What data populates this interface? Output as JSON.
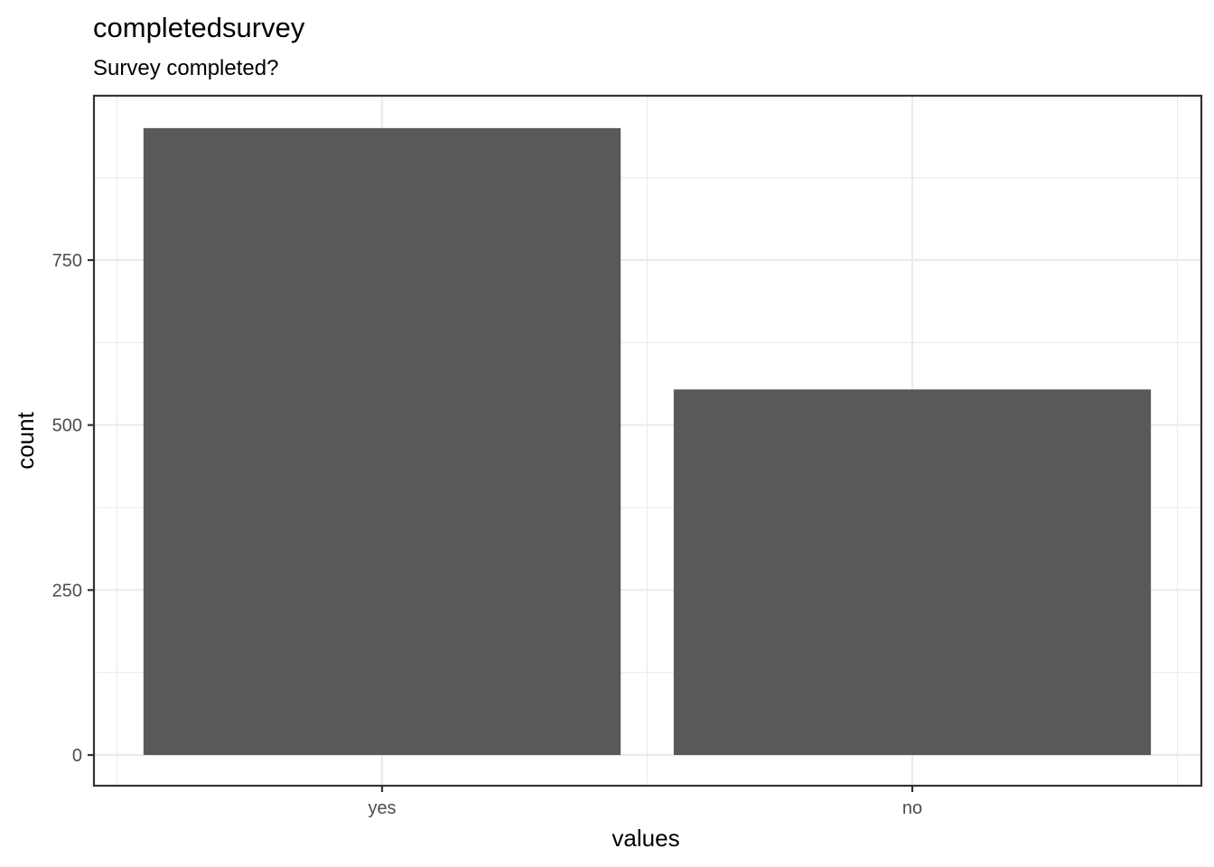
{
  "chart_data": {
    "type": "bar",
    "title": "completedsurvey",
    "subtitle": "Survey completed?",
    "xlabel": "values",
    "ylabel": "count",
    "categories": [
      "yes",
      "no"
    ],
    "values": [
      950,
      554
    ],
    "ylim": [
      -46,
      1000
    ],
    "yticks": [
      0,
      250,
      500,
      750
    ],
    "ytick_labels": [
      "0",
      "250",
      "500",
      "750"
    ],
    "grid": true,
    "bar_color": "#595959"
  }
}
